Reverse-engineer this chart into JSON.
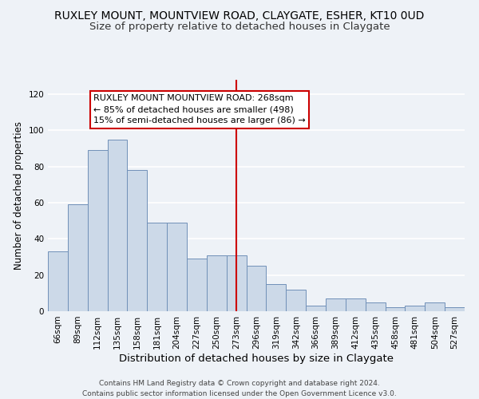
{
  "title": "RUXLEY MOUNT, MOUNTVIEW ROAD, CLAYGATE, ESHER, KT10 0UD",
  "subtitle": "Size of property relative to detached houses in Claygate",
  "xlabel": "Distribution of detached houses by size in Claygate",
  "ylabel": "Number of detached properties",
  "bar_color": "#ccd9e8",
  "bar_edge_color": "#7090b8",
  "categories": [
    "66sqm",
    "89sqm",
    "112sqm",
    "135sqm",
    "158sqm",
    "181sqm",
    "204sqm",
    "227sqm",
    "250sqm",
    "273sqm",
    "296sqm",
    "319sqm",
    "342sqm",
    "366sqm",
    "389sqm",
    "412sqm",
    "435sqm",
    "458sqm",
    "481sqm",
    "504sqm",
    "527sqm"
  ],
  "values": [
    33,
    59,
    89,
    95,
    78,
    49,
    49,
    29,
    31,
    31,
    25,
    15,
    12,
    3,
    7,
    7,
    5,
    2,
    3,
    5,
    2
  ],
  "vline_index": 9,
  "vline_color": "#cc0000",
  "ylim": [
    0,
    128
  ],
  "yticks": [
    0,
    20,
    40,
    60,
    80,
    100,
    120
  ],
  "annotation_box_text": [
    "RUXLEY MOUNT MOUNTVIEW ROAD: 268sqm",
    "← 85% of detached houses are smaller (498)",
    "15% of semi-detached houses are larger (86) →"
  ],
  "footer_line1": "Contains HM Land Registry data © Crown copyright and database right 2024.",
  "footer_line2": "Contains public sector information licensed under the Open Government Licence v3.0.",
  "background_color": "#eef2f7",
  "grid_color": "#ffffff",
  "title_fontsize": 10,
  "subtitle_fontsize": 9.5,
  "tick_fontsize": 7.5,
  "ylabel_fontsize": 8.5,
  "xlabel_fontsize": 9.5,
  "footer_fontsize": 6.5
}
